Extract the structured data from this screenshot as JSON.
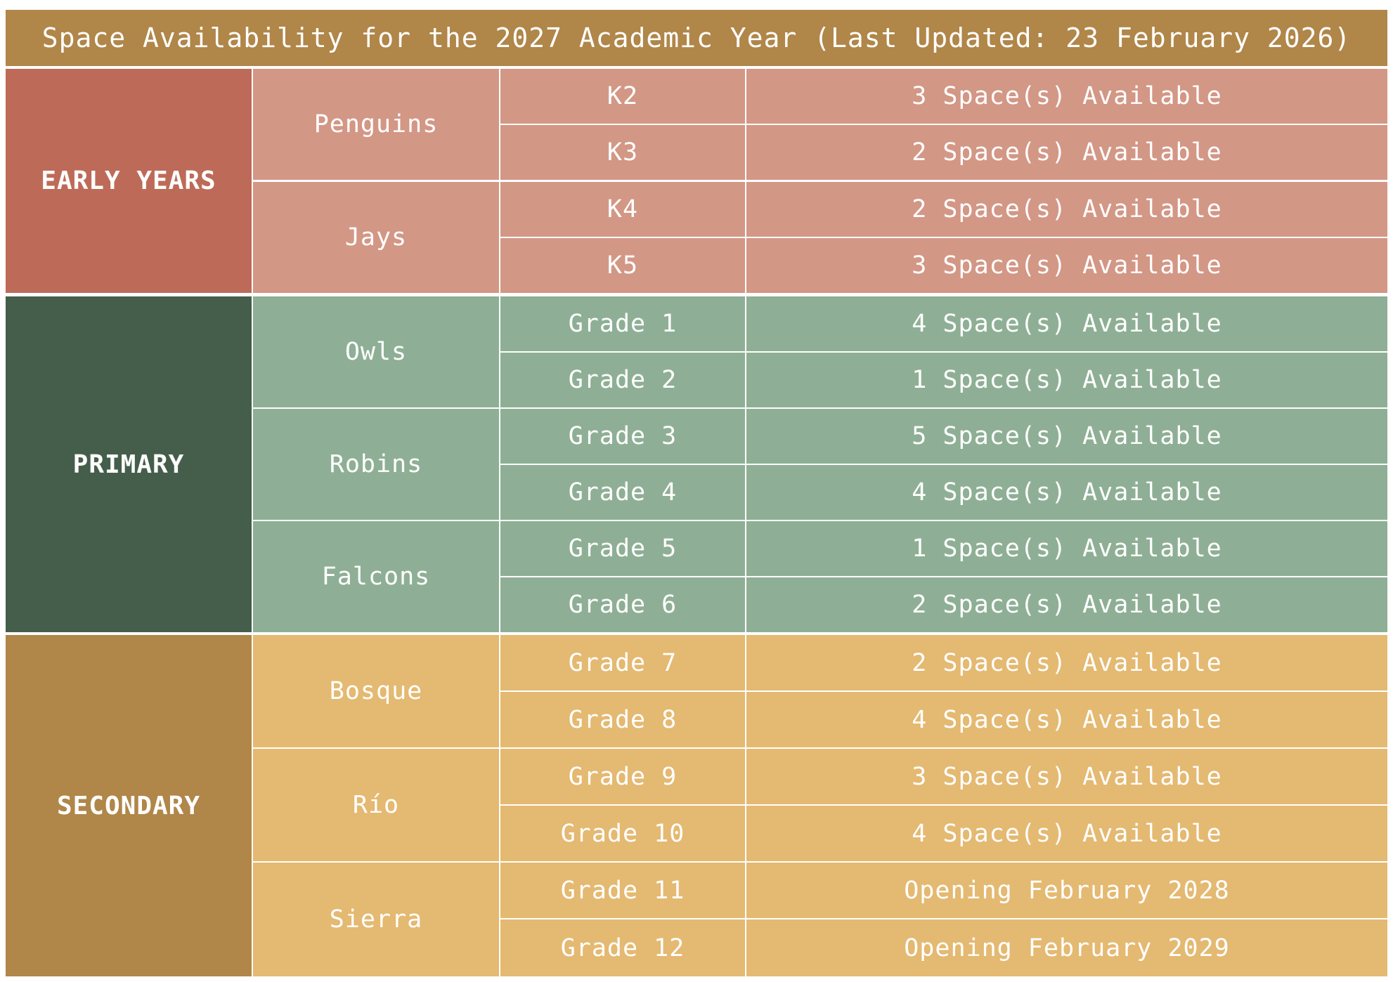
{
  "title": "Space Availability for the 2027 Academic Year (Last Updated: 23 February 2026)",
  "stages": [
    {
      "name": "EARLY YEARS",
      "houses": [
        {
          "name": "Penguins",
          "rows": [
            {
              "grade": "K2",
              "status": "3 Space(s) Available"
            },
            {
              "grade": "K3",
              "status": "2 Space(s) Available"
            }
          ]
        },
        {
          "name": "Jays",
          "rows": [
            {
              "grade": "K4",
              "status": "2 Space(s) Available"
            },
            {
              "grade": "K5",
              "status": "3 Space(s) Available"
            }
          ]
        }
      ]
    },
    {
      "name": "PRIMARY",
      "houses": [
        {
          "name": "Owls",
          "rows": [
            {
              "grade": "Grade 1",
              "status": "4 Space(s) Available"
            },
            {
              "grade": "Grade 2",
              "status": "1 Space(s) Available"
            }
          ]
        },
        {
          "name": "Robins",
          "rows": [
            {
              "grade": "Grade 3",
              "status": "5 Space(s) Available"
            },
            {
              "grade": "Grade 4",
              "status": "4 Space(s) Available"
            }
          ]
        },
        {
          "name": "Falcons",
          "rows": [
            {
              "grade": "Grade 5",
              "status": "1 Space(s) Available"
            },
            {
              "grade": "Grade 6",
              "status": "2 Space(s) Available"
            }
          ]
        }
      ]
    },
    {
      "name": "SECONDARY",
      "houses": [
        {
          "name": "Bosque",
          "rows": [
            {
              "grade": "Grade 7",
              "status": "2 Space(s) Available"
            },
            {
              "grade": "Grade 8",
              "status": "4 Space(s) Available"
            }
          ]
        },
        {
          "name": "Río",
          "rows": [
            {
              "grade": "Grade 9",
              "status": "3 Space(s) Available"
            },
            {
              "grade": "Grade 10",
              "status": "4 Space(s) Available"
            }
          ]
        },
        {
          "name": "Sierra",
          "rows": [
            {
              "grade": "Grade 11",
              "status": "Opening February 2028"
            },
            {
              "grade": "Grade 12",
              "status": "Opening February 2029"
            }
          ]
        }
      ]
    }
  ],
  "colors": {
    "title_bg": "#b08649",
    "text": "#ffffff",
    "early_years_dark": "#bd6b58",
    "early_years_light": "#d39786",
    "primary_dark": "#455e4b",
    "primary_light": "#8eaf95",
    "secondary_dark": "#b08649",
    "secondary_light": "#e4b971"
  }
}
